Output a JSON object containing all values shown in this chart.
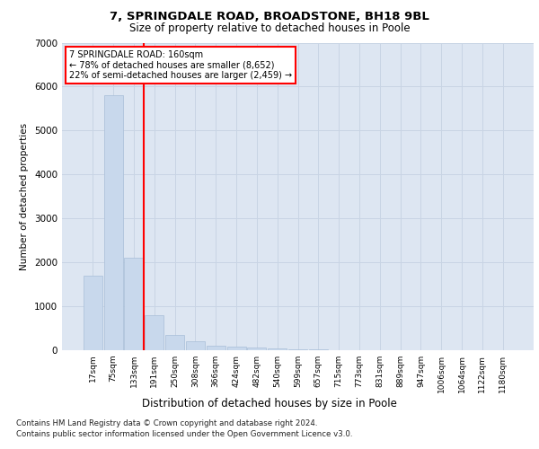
{
  "title1": "7, SPRINGDALE ROAD, BROADSTONE, BH18 9BL",
  "title2": "Size of property relative to detached houses in Poole",
  "xlabel": "Distribution of detached houses by size in Poole",
  "ylabel": "Number of detached properties",
  "footer1": "Contains HM Land Registry data © Crown copyright and database right 2024.",
  "footer2": "Contains public sector information licensed under the Open Government Licence v3.0.",
  "annotation_line1": "7 SPRINGDALE ROAD: 160sqm",
  "annotation_line2": "← 78% of detached houses are smaller (8,652)",
  "annotation_line3": "22% of semi-detached houses are larger (2,459) →",
  "bar_labels": [
    "17sqm",
    "75sqm",
    "133sqm",
    "191sqm",
    "250sqm",
    "308sqm",
    "366sqm",
    "424sqm",
    "482sqm",
    "540sqm",
    "599sqm",
    "657sqm",
    "715sqm",
    "773sqm",
    "831sqm",
    "889sqm",
    "947sqm",
    "1006sqm",
    "1064sqm",
    "1122sqm",
    "1180sqm"
  ],
  "bar_values": [
    1700,
    5800,
    2100,
    800,
    350,
    200,
    100,
    75,
    55,
    35,
    25,
    15,
    5,
    3,
    2,
    1,
    1,
    0,
    0,
    0,
    0
  ],
  "bar_color": "#c8d8ec",
  "bar_edge_color": "#a8bed8",
  "red_line_x": 2.5,
  "ylim": [
    0,
    7000
  ],
  "yticks": [
    0,
    1000,
    2000,
    3000,
    4000,
    5000,
    6000,
    7000
  ],
  "grid_color": "#c8d4e4",
  "background_color": "#dde6f2"
}
